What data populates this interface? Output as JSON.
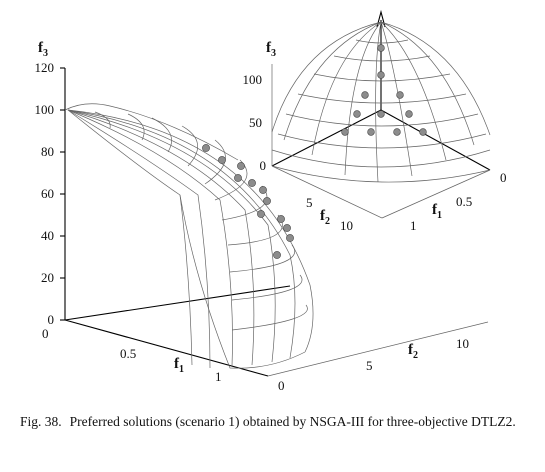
{
  "caption": {
    "label": "Fig. 38.",
    "text": "Preferred solutions (scenario 1) obtained by NSGA-III for three-objective DTLZ2."
  },
  "main_plot": {
    "f3_ticks": [
      "0",
      "20",
      "40",
      "60",
      "80",
      "100",
      "120"
    ],
    "f1_ticks": [
      "0",
      "0.5",
      "1"
    ],
    "f2_ticks": [
      "0",
      "5",
      "10"
    ],
    "f1_label": "f",
    "f1_sub": "1",
    "f2_label": "f",
    "f2_sub": "2",
    "f3_label": "f",
    "f3_sub": "3"
  },
  "inset_plot": {
    "f3_ticks": [
      "0",
      "50",
      "100"
    ],
    "f1_ticks": [
      "0",
      "0.5",
      "1"
    ],
    "f2_ticks": [
      "5",
      "10"
    ],
    "f1_label": "f",
    "f1_sub": "1",
    "f2_label": "f",
    "f2_sub": "2",
    "f3_label": "f",
    "f3_sub": "3"
  },
  "colors": {
    "points": "#8c8c8c",
    "mesh": "#666666",
    "axes": "#000000"
  }
}
